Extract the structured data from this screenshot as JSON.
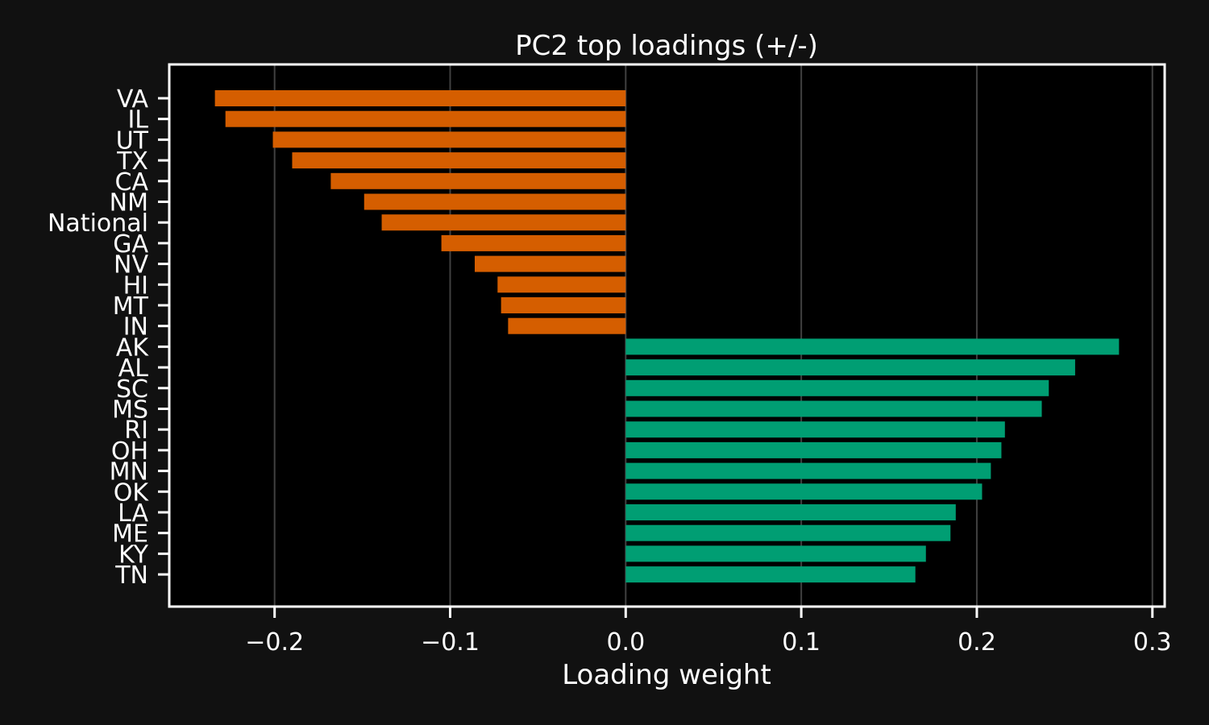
{
  "chart_data": {
    "type": "bar",
    "orientation": "horizontal",
    "title": "PC2 top loadings (+/-)",
    "xlabel": "Loading weight",
    "ylabel": "",
    "xlim": [
      -0.26,
      0.307
    ],
    "xticks": [
      -0.2,
      -0.1,
      0.0,
      0.1,
      0.2,
      0.3
    ],
    "xtick_labels": [
      "−0.2",
      "−0.1",
      "0.0",
      "0.1",
      "0.2",
      "0.3"
    ],
    "grid": "vertical",
    "categories": [
      "VA",
      "IL",
      "UT",
      "TX",
      "CA",
      "NM",
      "National",
      "GA",
      "NV",
      "HI",
      "MT",
      "IN",
      "AK",
      "AL",
      "SC",
      "MS",
      "RI",
      "OH",
      "MN",
      "OK",
      "LA",
      "ME",
      "KY",
      "TN"
    ],
    "values": [
      -0.234,
      -0.228,
      -0.201,
      -0.19,
      -0.168,
      -0.149,
      -0.139,
      -0.105,
      -0.086,
      -0.073,
      -0.071,
      -0.067,
      0.281,
      0.256,
      0.241,
      0.237,
      0.216,
      0.214,
      0.208,
      0.203,
      0.188,
      0.185,
      0.171,
      0.165
    ],
    "colors": {
      "negative": "#d55e00",
      "positive": "#009e73"
    }
  }
}
